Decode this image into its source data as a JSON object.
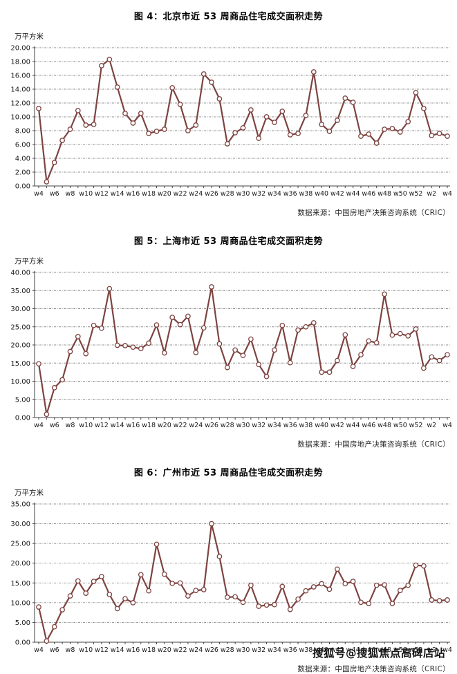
{
  "watermark": "搜狐号@搜狐焦点高碑店站",
  "chart_data": [
    {
      "type": "line",
      "title": "图 4：北京市近 53 周商品住宅成交面积走势",
      "ylabel": "万平方米",
      "source": "数据来源：中国房地产决策咨询系统（CRIC）",
      "line_color": "#7D4340",
      "marker": "open-circle",
      "grid": "dashed-horizontal",
      "legend": "none",
      "ylim": [
        0,
        20
      ],
      "ystep": 2,
      "xtick_every": 2,
      "categories": [
        "w4",
        "w5",
        "w6",
        "w7",
        "w8",
        "w9",
        "w10",
        "w11",
        "w12",
        "w13",
        "w14",
        "w15",
        "w16",
        "w17",
        "w18",
        "w19",
        "w20",
        "w21",
        "w22",
        "w23",
        "w24",
        "w25",
        "w26",
        "w27",
        "w28",
        "w29",
        "w30",
        "w31",
        "w32",
        "w33",
        "w34",
        "w35",
        "w36",
        "w37",
        "w38",
        "w39",
        "w40",
        "w41",
        "w42",
        "w43",
        "w44",
        "w45",
        "w46",
        "w47",
        "w48",
        "w49",
        "w50",
        "w51",
        "w52",
        "w1",
        "w2",
        "w3",
        "w4"
      ],
      "values": [
        11.2,
        0.6,
        3.4,
        6.6,
        8.2,
        10.9,
        8.8,
        8.9,
        17.4,
        18.3,
        14.3,
        10.5,
        9.1,
        10.5,
        7.6,
        7.9,
        8.2,
        14.2,
        11.8,
        8.0,
        8.8,
        16.2,
        15.0,
        12.6,
        6.1,
        7.7,
        8.4,
        11.0,
        6.9,
        10.0,
        9.2,
        10.8,
        7.4,
        7.6,
        10.2,
        16.5,
        8.9,
        7.9,
        9.5,
        12.7,
        12.1,
        7.2,
        7.5,
        6.2,
        8.2,
        8.3,
        7.8,
        9.3,
        13.5,
        11.2,
        7.3,
        7.6,
        7.2
      ]
    },
    {
      "type": "line",
      "title": "图 5：上海市近 53 周商品住宅成交面积走势",
      "ylabel": "万平方米",
      "source": "数据来源：中国房地产决策咨询系统（CRIC）",
      "line_color": "#7D4340",
      "marker": "open-circle",
      "grid": "dashed-horizontal",
      "legend": "none",
      "ylim": [
        0,
        40
      ],
      "ystep": 5,
      "xtick_every": 2,
      "categories": [
        "w4",
        "w5",
        "w6",
        "w7",
        "w8",
        "w9",
        "w10",
        "w11",
        "w12",
        "w13",
        "w14",
        "w15",
        "w16",
        "w17",
        "w18",
        "w19",
        "w20",
        "w21",
        "w22",
        "w23",
        "w24",
        "w25",
        "w26",
        "w27",
        "w28",
        "w29",
        "w30",
        "w31",
        "w32",
        "w33",
        "w34",
        "w35",
        "w36",
        "w37",
        "w38",
        "w39",
        "w40",
        "w41",
        "w42",
        "w43",
        "w44",
        "w45",
        "w46",
        "w47",
        "w48",
        "w49",
        "w50",
        "w51",
        "w52",
        "w1",
        "w2",
        "w3",
        "w4"
      ],
      "values": [
        14.8,
        0.9,
        8.2,
        10.4,
        18.2,
        22.3,
        17.6,
        25.4,
        24.6,
        35.5,
        19.9,
        19.8,
        19.4,
        19.0,
        20.5,
        25.5,
        17.8,
        27.6,
        25.6,
        27.9,
        17.9,
        24.7,
        36.0,
        20.3,
        13.8,
        18.6,
        17.1,
        21.6,
        14.6,
        11.3,
        18.6,
        25.4,
        15.1,
        24.1,
        25.0,
        26.1,
        12.5,
        12.5,
        15.7,
        22.8,
        14.1,
        17.3,
        21.1,
        20.6,
        34.0,
        22.7,
        23.1,
        22.5,
        24.4,
        13.6,
        16.7,
        15.7,
        17.3
      ]
    },
    {
      "type": "line",
      "title": "图 6：广州市近 53 周商品住宅成交面积走势",
      "ylabel": "万平方米",
      "source": "数据来源：中国房地产决策咨询系统（CRIC）",
      "line_color": "#7D4340",
      "marker": "open-circle",
      "grid": "dashed-horizontal",
      "legend": "none",
      "ylim": [
        0,
        35
      ],
      "ystep": 5,
      "xtick_every": 2,
      "categories": [
        "w4",
        "w5",
        "w6",
        "w7",
        "w8",
        "w9",
        "w10",
        "w11",
        "w12",
        "w13",
        "w14",
        "w15",
        "w16",
        "w17",
        "w18",
        "w19",
        "w20",
        "w21",
        "w22",
        "w23",
        "w24",
        "w25",
        "w26",
        "w27",
        "w28",
        "w29",
        "w30",
        "w31",
        "w32",
        "w33",
        "w34",
        "w35",
        "w36",
        "w37",
        "w38",
        "w39",
        "w40",
        "w41",
        "w42",
        "w43",
        "w44",
        "w45",
        "w46",
        "w47",
        "w48",
        "w49",
        "w50",
        "w51",
        "w52",
        "w1",
        "w2",
        "w3",
        "w4"
      ],
      "values": [
        8.9,
        0.3,
        3.9,
        8.2,
        11.7,
        15.5,
        12.4,
        15.4,
        16.6,
        12.1,
        8.5,
        11.0,
        10.0,
        17.1,
        13.0,
        24.8,
        17.2,
        14.9,
        15.0,
        11.7,
        13.1,
        13.3,
        30.0,
        21.7,
        11.4,
        11.5,
        10.1,
        14.4,
        9.1,
        9.4,
        9.5,
        14.1,
        8.3,
        10.9,
        13.0,
        14.0,
        14.8,
        13.4,
        18.5,
        14.8,
        15.4,
        10.1,
        9.8,
        14.4,
        14.5,
        9.8,
        13.1,
        14.4,
        19.5,
        19.3,
        10.7,
        10.5,
        10.7
      ]
    }
  ]
}
